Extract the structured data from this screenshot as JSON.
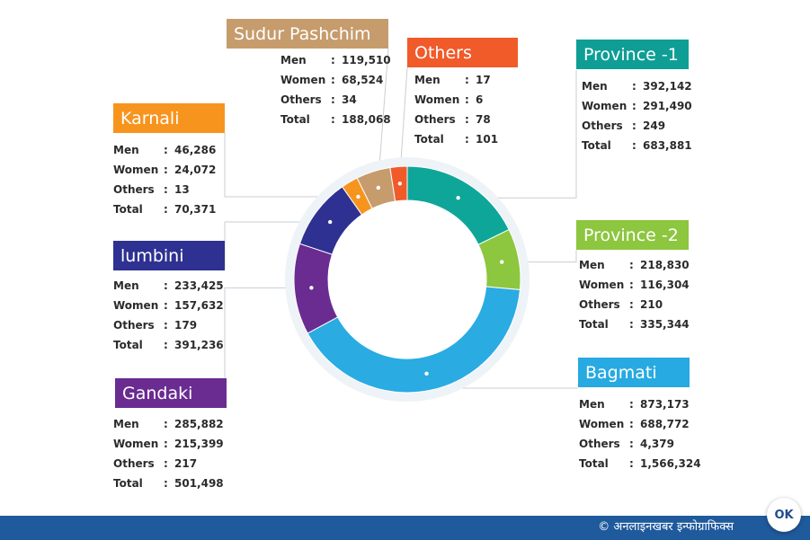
{
  "chart_data": {
    "type": "pie",
    "variant": "donut",
    "categories": [
      "Province -1",
      "Province -2",
      "Bagmati",
      "Gandaki",
      "lumbini",
      "Karnali",
      "Sudur Pashchim",
      "Others"
    ],
    "values": [
      683881,
      335344,
      1566324,
      501498,
      391236,
      70371,
      188068,
      101
    ],
    "colors": [
      "#0fa69a",
      "#8dc63f",
      "#2aabe2",
      "#6a2c91",
      "#2e3191",
      "#f7941e",
      "#c69c6d",
      "#f15a29"
    ]
  },
  "regions": [
    {
      "name": "Province  -1",
      "color": "#0e9e95",
      "men": "392,142",
      "women": "291,490",
      "others": "249",
      "total": "683,881"
    },
    {
      "name": "Province  -2",
      "color": "#8dc63f",
      "men": "218,830",
      "women": "116,304",
      "others": "210",
      "total": "335,344"
    },
    {
      "name": "Bagmati",
      "color": "#27aae1",
      "men": "873,173",
      "women": "688,772",
      "others": "4,379",
      "total": "1,566,324"
    },
    {
      "name": "Gandaki",
      "color": "#6a2c91",
      "men": "285,882",
      "women": "215,399",
      "others": "217",
      "total": "501,498"
    },
    {
      "name": "lumbini",
      "color": "#2e3191",
      "men": "233,425",
      "women": "157,632",
      "others": "179",
      "total": "391,236"
    },
    {
      "name": "Karnali",
      "color": "#f7941e",
      "men": "46,286",
      "women": "24,072",
      "others": "13",
      "total": "70,371"
    },
    {
      "name": "Sudur Pashchim",
      "color": "#c69c6d",
      "men": "119,510",
      "women": "68,524",
      "others": "34",
      "total": "188,068"
    },
    {
      "name": "Others",
      "color": "#f15a29",
      "men": "17",
      "women": "6",
      "others": "78",
      "total": "101"
    }
  ],
  "stat_labels": {
    "men": "Men",
    "women": "Women",
    "others": "Others",
    "total": "Total",
    "colon": ":"
  },
  "footer": {
    "credit": "© अनलाइनखबर इन्फोग्राफिक्स",
    "logo_text": "OK",
    "color": "#1f5a9c"
  }
}
